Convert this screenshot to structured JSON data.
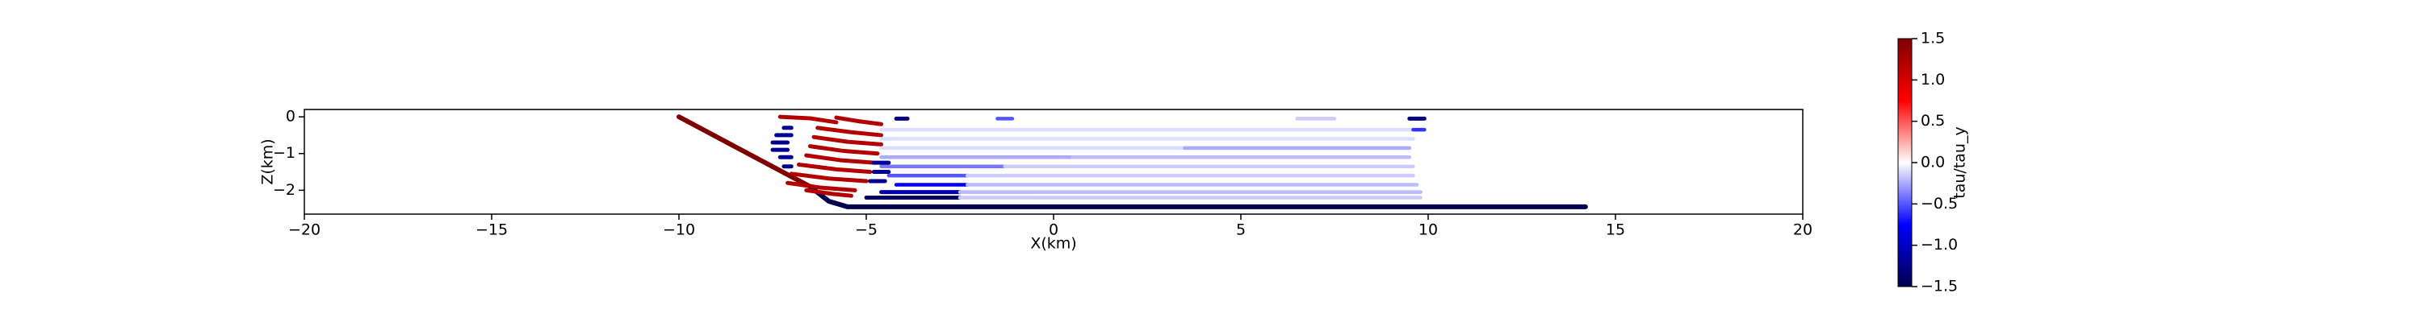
{
  "chart_data": {
    "type": "line",
    "xlabel": "X(km)",
    "ylabel": "Z(km)",
    "xlim": [
      -20,
      20
    ],
    "xticks": [
      {
        "value": -20,
        "label": "−20"
      },
      {
        "value": -15,
        "label": "−15"
      },
      {
        "value": -10,
        "label": "−10"
      },
      {
        "value": -5,
        "label": "−5"
      },
      0,
      5,
      10,
      15,
      20
    ],
    "ylim": [
      -2.65,
      0.2
    ],
    "yticks": [
      0,
      {
        "value": -1,
        "label": "−1"
      },
      {
        "value": -2,
        "label": "−2"
      }
    ],
    "colorbar": {
      "label": "tau/tau_y",
      "clim": [
        -1.5,
        1.5
      ],
      "ticks": [
        1.5,
        {
          "value": 1.0,
          "label": "1.0"
        },
        0.5,
        {
          "value": 0.0,
          "label": "0.0"
        },
        {
          "value": -0.5,
          "label": "−0.5"
        },
        {
          "value": -1.0,
          "label": "−1.0"
        },
        {
          "value": -1.5,
          "label": "−1.5"
        }
      ]
    },
    "segments": [
      {
        "x": [
          -10,
          -6.5
        ],
        "y": [
          0,
          -1.9
        ],
        "c": 1.5
      },
      {
        "x": [
          -6.5,
          -6,
          -5.5,
          14.2
        ],
        "y": [
          -1.9,
          -2.3,
          -2.45,
          -2.45
        ],
        "c": -1.5
      },
      {
        "x": [
          -7.3,
          -6.5,
          -5.8
        ],
        "y": [
          0.0,
          -0.04,
          -0.15
        ],
        "c": 1.2
      },
      {
        "x": [
          -5.8,
          -5.2,
          -4.6
        ],
        "y": [
          -0.02,
          -0.12,
          -0.2
        ],
        "c": 1.2
      },
      {
        "x": [
          -6.3,
          -5.4,
          -4.6
        ],
        "y": [
          -0.3,
          -0.42,
          -0.5
        ],
        "c": 1.2
      },
      {
        "x": [
          -6.4,
          -5.5,
          -4.6
        ],
        "y": [
          -0.55,
          -0.68,
          -0.75
        ],
        "c": 1.2
      },
      {
        "x": [
          -6.5,
          -5.6,
          -4.7
        ],
        "y": [
          -0.8,
          -0.93,
          -1.0
        ],
        "c": 1.2
      },
      {
        "x": [
          -6.6,
          -5.7,
          -4.8
        ],
        "y": [
          -1.05,
          -1.18,
          -1.25
        ],
        "c": 1.2
      },
      {
        "x": [
          -6.8,
          -5.8,
          -4.9
        ],
        "y": [
          -1.3,
          -1.43,
          -1.5
        ],
        "c": 1.2
      },
      {
        "x": [
          -7.0,
          -6.0,
          -5.0
        ],
        "y": [
          -1.55,
          -1.68,
          -1.75
        ],
        "c": 1.2
      },
      {
        "x": [
          -7.1,
          -6.2,
          -5.3
        ],
        "y": [
          -1.8,
          -1.93,
          -2.0
        ],
        "c": 1.2
      },
      {
        "x": [
          -6.6,
          -5.9,
          -5.4
        ],
        "y": [
          -2.0,
          -2.1,
          -2.15
        ],
        "c": 1.2
      },
      {
        "x": [
          -5.0,
          -2.5
        ],
        "y": [
          -2.2,
          -2.2
        ],
        "c": -1.4
      },
      {
        "x": [
          -2.5,
          9.8
        ],
        "y": [
          -2.2,
          -2.2
        ],
        "c": -0.15
      },
      {
        "x": [
          -4.6,
          -2.5
        ],
        "y": [
          -2.05,
          -2.05
        ],
        "c": -1.1
      },
      {
        "x": [
          -2.5,
          9.8
        ],
        "y": [
          -2.05,
          -2.05
        ],
        "c": -0.2
      },
      {
        "x": [
          -4.2,
          -2.3
        ],
        "y": [
          -1.85,
          -1.85
        ],
        "c": -0.8
      },
      {
        "x": [
          -2.3,
          9.7
        ],
        "y": [
          -1.85,
          -1.85
        ],
        "c": -0.2
      },
      {
        "x": [
          -4.4,
          -2.3
        ],
        "y": [
          -1.6,
          -1.6
        ],
        "c": -0.5
      },
      {
        "x": [
          -2.3,
          9.6
        ],
        "y": [
          -1.6,
          -1.6
        ],
        "c": -0.15
      },
      {
        "x": [
          -4.6,
          -1.3
        ],
        "y": [
          -1.35,
          -1.35
        ],
        "c": -0.4
      },
      {
        "x": [
          -1.3,
          9.6
        ],
        "y": [
          -1.35,
          -1.35
        ],
        "c": -0.15
      },
      {
        "x": [
          -4.6,
          0.5
        ],
        "y": [
          -1.1,
          -1.1
        ],
        "c": -0.25
      },
      {
        "x": [
          0.5,
          9.5
        ],
        "y": [
          -1.1,
          -1.1
        ],
        "c": -0.2
      },
      {
        "x": [
          -4.6,
          3.5
        ],
        "y": [
          -0.85,
          -0.85
        ],
        "c": -0.1
      },
      {
        "x": [
          3.5,
          9.5
        ],
        "y": [
          -0.85,
          -0.85
        ],
        "c": -0.25
      },
      {
        "x": [
          -4.6,
          9.6
        ],
        "y": [
          -0.6,
          -0.6
        ],
        "c": -0.1
      },
      {
        "x": [
          -4.6,
          9.6
        ],
        "y": [
          -0.35,
          -0.35
        ],
        "c": -0.1
      },
      {
        "x": [
          9.6,
          9.9
        ],
        "y": [
          -0.35,
          -0.35
        ],
        "c": -0.6
      },
      {
        "x": [
          -4.2,
          -3.9
        ],
        "y": [
          -0.05,
          -0.05
        ],
        "c": -1.3
      },
      {
        "x": [
          -1.5,
          -1.1
        ],
        "y": [
          -0.05,
          -0.05
        ],
        "c": -0.5
      },
      {
        "x": [
          6.5,
          7.5
        ],
        "y": [
          -0.05,
          -0.05
        ],
        "c": -0.15
      },
      {
        "x": [
          9.5,
          9.9
        ],
        "y": [
          -0.05,
          -0.05
        ],
        "c": -1.3
      },
      {
        "x": [
          -7.2,
          -7.0
        ],
        "y": [
          -0.3,
          -0.3
        ],
        "c": -1.2
      },
      {
        "x": [
          -7.4,
          -7.0
        ],
        "y": [
          -0.5,
          -0.5
        ],
        "c": -1.2
      },
      {
        "x": [
          -7.5,
          -7.1
        ],
        "y": [
          -0.7,
          -0.7
        ],
        "c": -1.2
      },
      {
        "x": [
          -7.5,
          -7.1
        ],
        "y": [
          -0.9,
          -0.9
        ],
        "c": -1.2
      },
      {
        "x": [
          -7.3,
          -7.0
        ],
        "y": [
          -1.1,
          -1.1
        ],
        "c": -1.2
      },
      {
        "x": [
          -7.2,
          -7.0
        ],
        "y": [
          -1.35,
          -1.35
        ],
        "c": -1.2
      },
      {
        "x": [
          -4.8,
          -4.4
        ],
        "y": [
          -1.25,
          -1.25
        ],
        "c": -1.2
      },
      {
        "x": [
          -4.8,
          -4.4
        ],
        "y": [
          -1.5,
          -1.5
        ],
        "c": -1.2
      },
      {
        "x": [
          -4.9,
          -4.5
        ],
        "y": [
          -1.75,
          -1.75
        ],
        "c": -1.2
      }
    ]
  }
}
